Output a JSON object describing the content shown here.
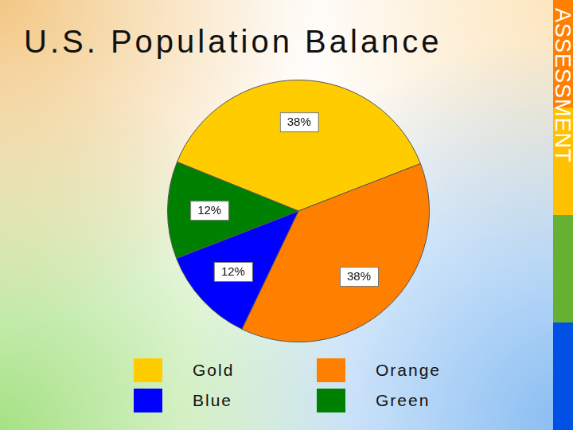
{
  "chart_data": {
    "type": "pie",
    "title": "U.S. Population Balance",
    "annotations": [
      "ASSESSMENT"
    ],
    "categories": [
      "Gold",
      "Orange",
      "Blue",
      "Green"
    ],
    "values": [
      38,
      38,
      12,
      12
    ],
    "value_labels": [
      "38%",
      "38%",
      "12%",
      "12%"
    ],
    "colors": [
      "#ffcc00",
      "#ff8000",
      "#0000ff",
      "#008000"
    ],
    "data_labels": true,
    "legend": "bottom"
  }
}
